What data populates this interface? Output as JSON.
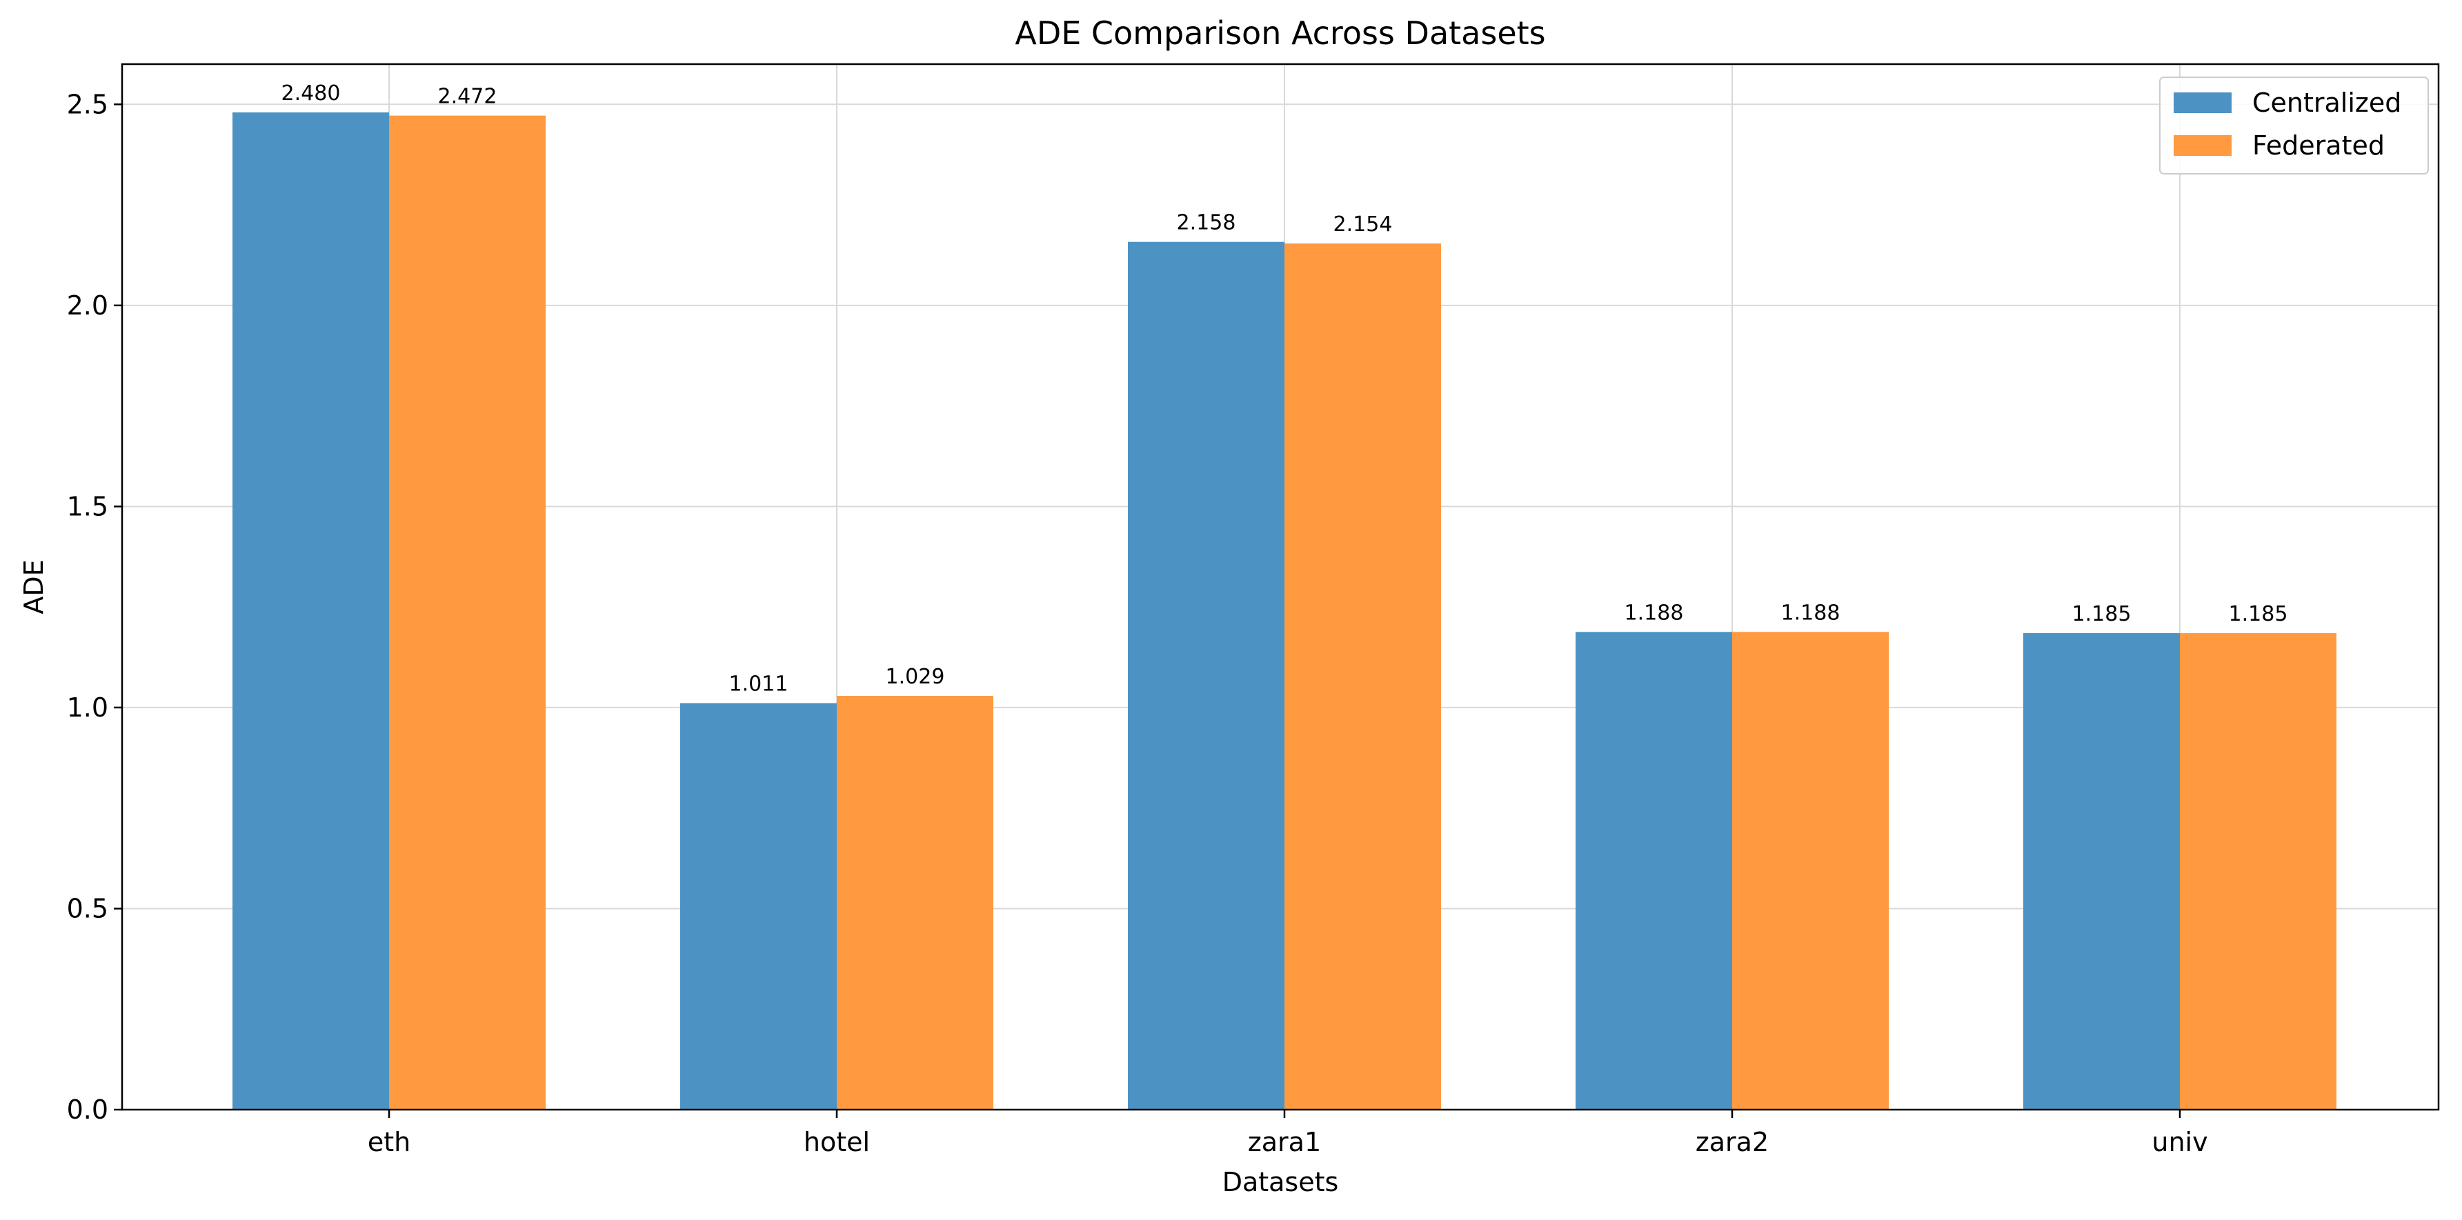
{
  "chart_data": {
    "type": "bar",
    "title": "ADE Comparison Across Datasets",
    "xlabel": "Datasets",
    "ylabel": "ADE",
    "categories": [
      "eth",
      "hotel",
      "zara1",
      "zara2",
      "univ"
    ],
    "series": [
      {
        "name": "Centralized",
        "color": "#4c93c3",
        "values": [
          2.48,
          1.011,
          2.158,
          1.188,
          1.185
        ],
        "labels": [
          "2.480",
          "1.011",
          "2.158",
          "1.188",
          "1.185"
        ]
      },
      {
        "name": "Federated",
        "color": "#ff9a40",
        "values": [
          2.472,
          1.029,
          2.154,
          1.188,
          1.185
        ],
        "labels": [
          "2.472",
          "1.029",
          "2.154",
          "1.188",
          "1.185"
        ]
      }
    ],
    "ylim": [
      0,
      2.6
    ],
    "yticks": [
      0.0,
      0.5,
      1.0,
      1.5,
      2.0,
      2.5
    ],
    "ytick_labels": [
      "0.0",
      "0.5",
      "1.0",
      "1.5",
      "2.0",
      "2.5"
    ],
    "grid": true,
    "legend_position": "top-right"
  }
}
